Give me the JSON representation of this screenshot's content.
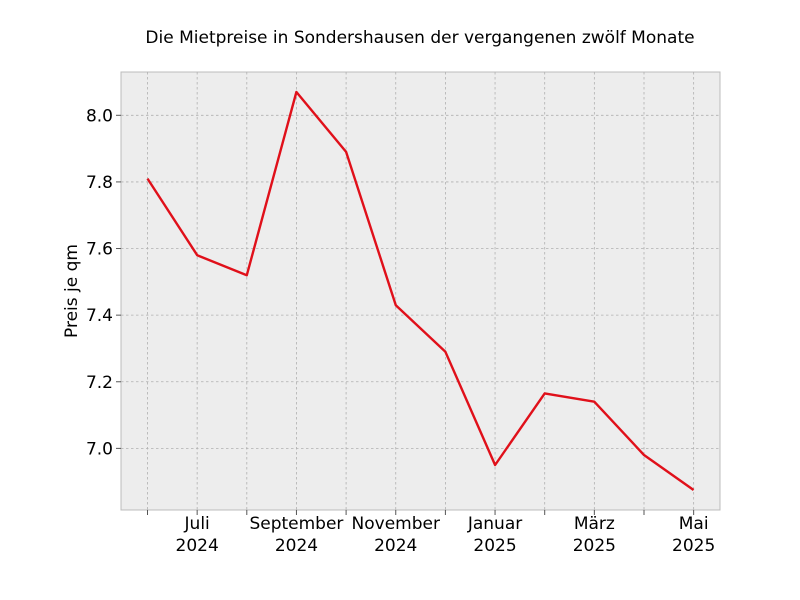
{
  "chart_data": {
    "type": "line",
    "title": "Die Mietpreise in Sondershausen der vergangenen zwölf Monate",
    "xlabel": "",
    "ylabel": "Preis je qm",
    "x": [
      "2024-06",
      "2024-07",
      "2024-08",
      "2024-09",
      "2024-10",
      "2024-11",
      "2024-12",
      "2025-01",
      "2025-02",
      "2025-03",
      "2025-04",
      "2025-05"
    ],
    "x_tick_labels": [
      {
        "x": "2024-07",
        "line1": "Juli",
        "line2": "2024"
      },
      {
        "x": "2024-09",
        "line1": "September",
        "line2": "2024"
      },
      {
        "x": "2024-11",
        "line1": "November",
        "line2": "2024"
      },
      {
        "x": "2025-01",
        "line1": "Januar",
        "line2": "2025"
      },
      {
        "x": "2025-03",
        "line1": "März",
        "line2": "2025"
      },
      {
        "x": "2025-05",
        "line1": "Mai",
        "line2": "2025"
      }
    ],
    "series": [
      {
        "values": [
          7.81,
          7.58,
          7.52,
          8.07,
          7.89,
          7.43,
          7.29,
          6.95,
          7.165,
          7.14,
          6.98,
          6.875
        ],
        "color": "#e0101a"
      }
    ],
    "ylim": [
      6.815,
      8.13
    ],
    "y_ticks": [
      7.0,
      7.2,
      7.4,
      7.6,
      7.8,
      8.0
    ],
    "y_tick_labels": [
      "7.0",
      "7.2",
      "7.4",
      "7.6",
      "7.8",
      "8.0"
    ],
    "grid": true,
    "plot_background": "#ededed",
    "frame_color": "#bcbcbc"
  }
}
